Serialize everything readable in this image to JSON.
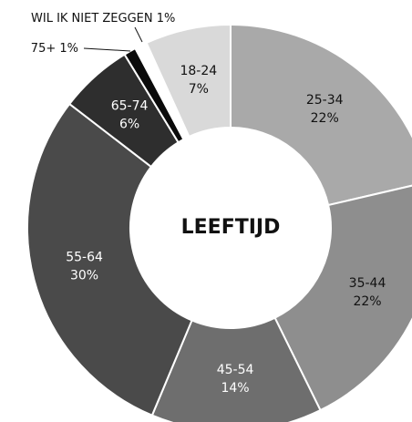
{
  "chart_data": {
    "type": "donut",
    "center_label": "LEEFTIJD",
    "categories": [
      "25-34",
      "35-44",
      "45-54",
      "55-64",
      "65-74",
      "75+",
      "WIL IK NIET ZEGGEN",
      "18-24"
    ],
    "values": [
      22,
      22,
      14,
      30,
      6,
      1,
      1,
      7
    ],
    "value_labels": [
      "22%",
      "22%",
      "14%",
      "30%",
      "6%",
      "1%",
      "1%",
      "7%"
    ],
    "colors": [
      "#a9a9a9",
      "#8e8e8e",
      "#6e6e6e",
      "#4a4a4a",
      "#2e2e2e",
      "#0a0a0a",
      "#ffffff",
      "#d9d9d9"
    ]
  }
}
